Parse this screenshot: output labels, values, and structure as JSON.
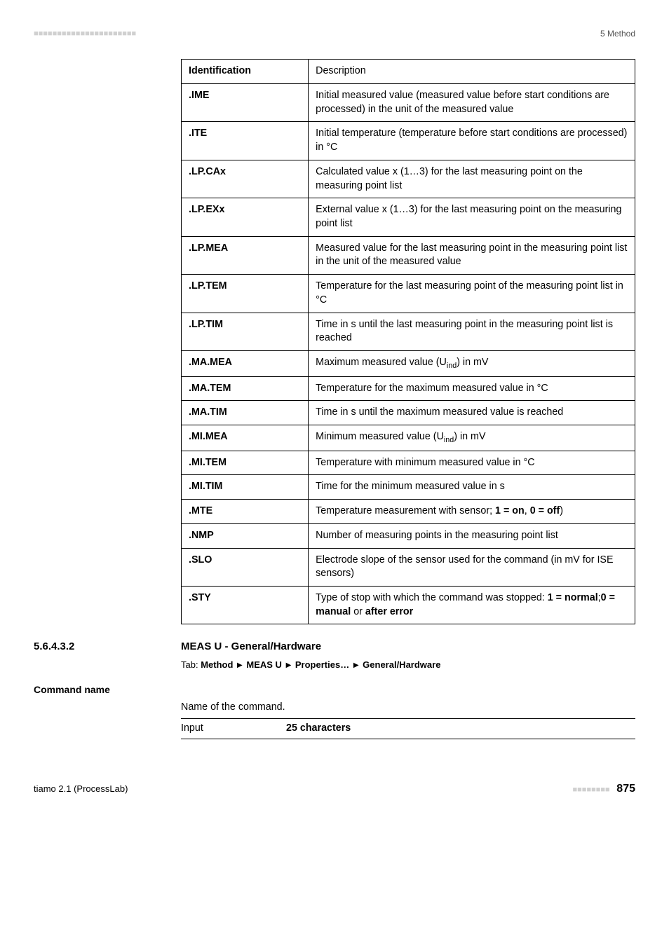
{
  "header": {
    "dashes": "■■■■■■■■■■■■■■■■■■■■■■",
    "section_label": "5 Method"
  },
  "table": {
    "head_id": "Identification",
    "head_desc": "Description",
    "rows": [
      {
        "id": ".IME",
        "desc": "Initial measured value (measured value before start conditions are processed) in the unit of the measured value"
      },
      {
        "id": ".ITE",
        "desc": "Initial temperature (temperature before start conditions are processed) in °C"
      },
      {
        "id": ".LP.CAx",
        "desc": "Calculated value x (1…3) for the last measuring point on the measuring point list"
      },
      {
        "id": ".LP.EXx",
        "desc": "External value x (1…3) for the last measuring point on the measuring point list"
      },
      {
        "id": ".LP.MEA",
        "desc": "Measured value for the last measuring point in the measuring point list in the unit of the measured value"
      },
      {
        "id": ".LP.TEM",
        "desc": "Temperature for the last measuring point of the measuring point list in °C"
      },
      {
        "id": ".LP.TIM",
        "desc": "Time in s until the last measuring point in the measuring point list is reached"
      },
      {
        "id": ".MA.MEA",
        "desc_html": "Maximum measured value (U<sub>ind</sub>) in mV"
      },
      {
        "id": ".MA.TEM",
        "desc": "Temperature for the maximum measured value in °C"
      },
      {
        "id": ".MA.TIM",
        "desc": "Time in s until the maximum measured value is reached"
      },
      {
        "id": ".MI.MEA",
        "desc_html": "Minimum measured value (U<sub>ind</sub>) in mV"
      },
      {
        "id": ".MI.TEM",
        "desc": "Temperature with minimum measured value in °C"
      },
      {
        "id": ".MI.TIM",
        "desc": "Time for the minimum measured value in s"
      },
      {
        "id": ".MTE",
        "desc_html": "Temperature measurement with sensor; <b>1 = on</b>, <b>0 = off</b>)"
      },
      {
        "id": ".NMP",
        "desc": "Number of measuring points in the measuring point list"
      },
      {
        "id": ".SLO",
        "desc": "Electrode slope of the sensor used for the command (in mV for ISE sensors)"
      },
      {
        "id": ".STY",
        "desc_html": "Type of stop with which the command was stopped: <b>1 = normal</b>;<b>0 = manual</b> or <b>after error</b>"
      }
    ]
  },
  "section": {
    "number": "5.6.4.3.2",
    "title": "MEAS U - General/Hardware",
    "tab_prefix": "Tab:",
    "tab_bold_1": "Method",
    "tab_bold_2": "MEAS U",
    "tab_bold_3": "Properties…",
    "tab_bold_4": "General/Hardware"
  },
  "command": {
    "label": "Command name",
    "text": "Name of the command.",
    "input_label": "Input",
    "input_value": "25 characters"
  },
  "footer": {
    "left": "tiamo 2.1 (ProcessLab)",
    "dashes": "■■■■■■■■",
    "page": "875"
  }
}
